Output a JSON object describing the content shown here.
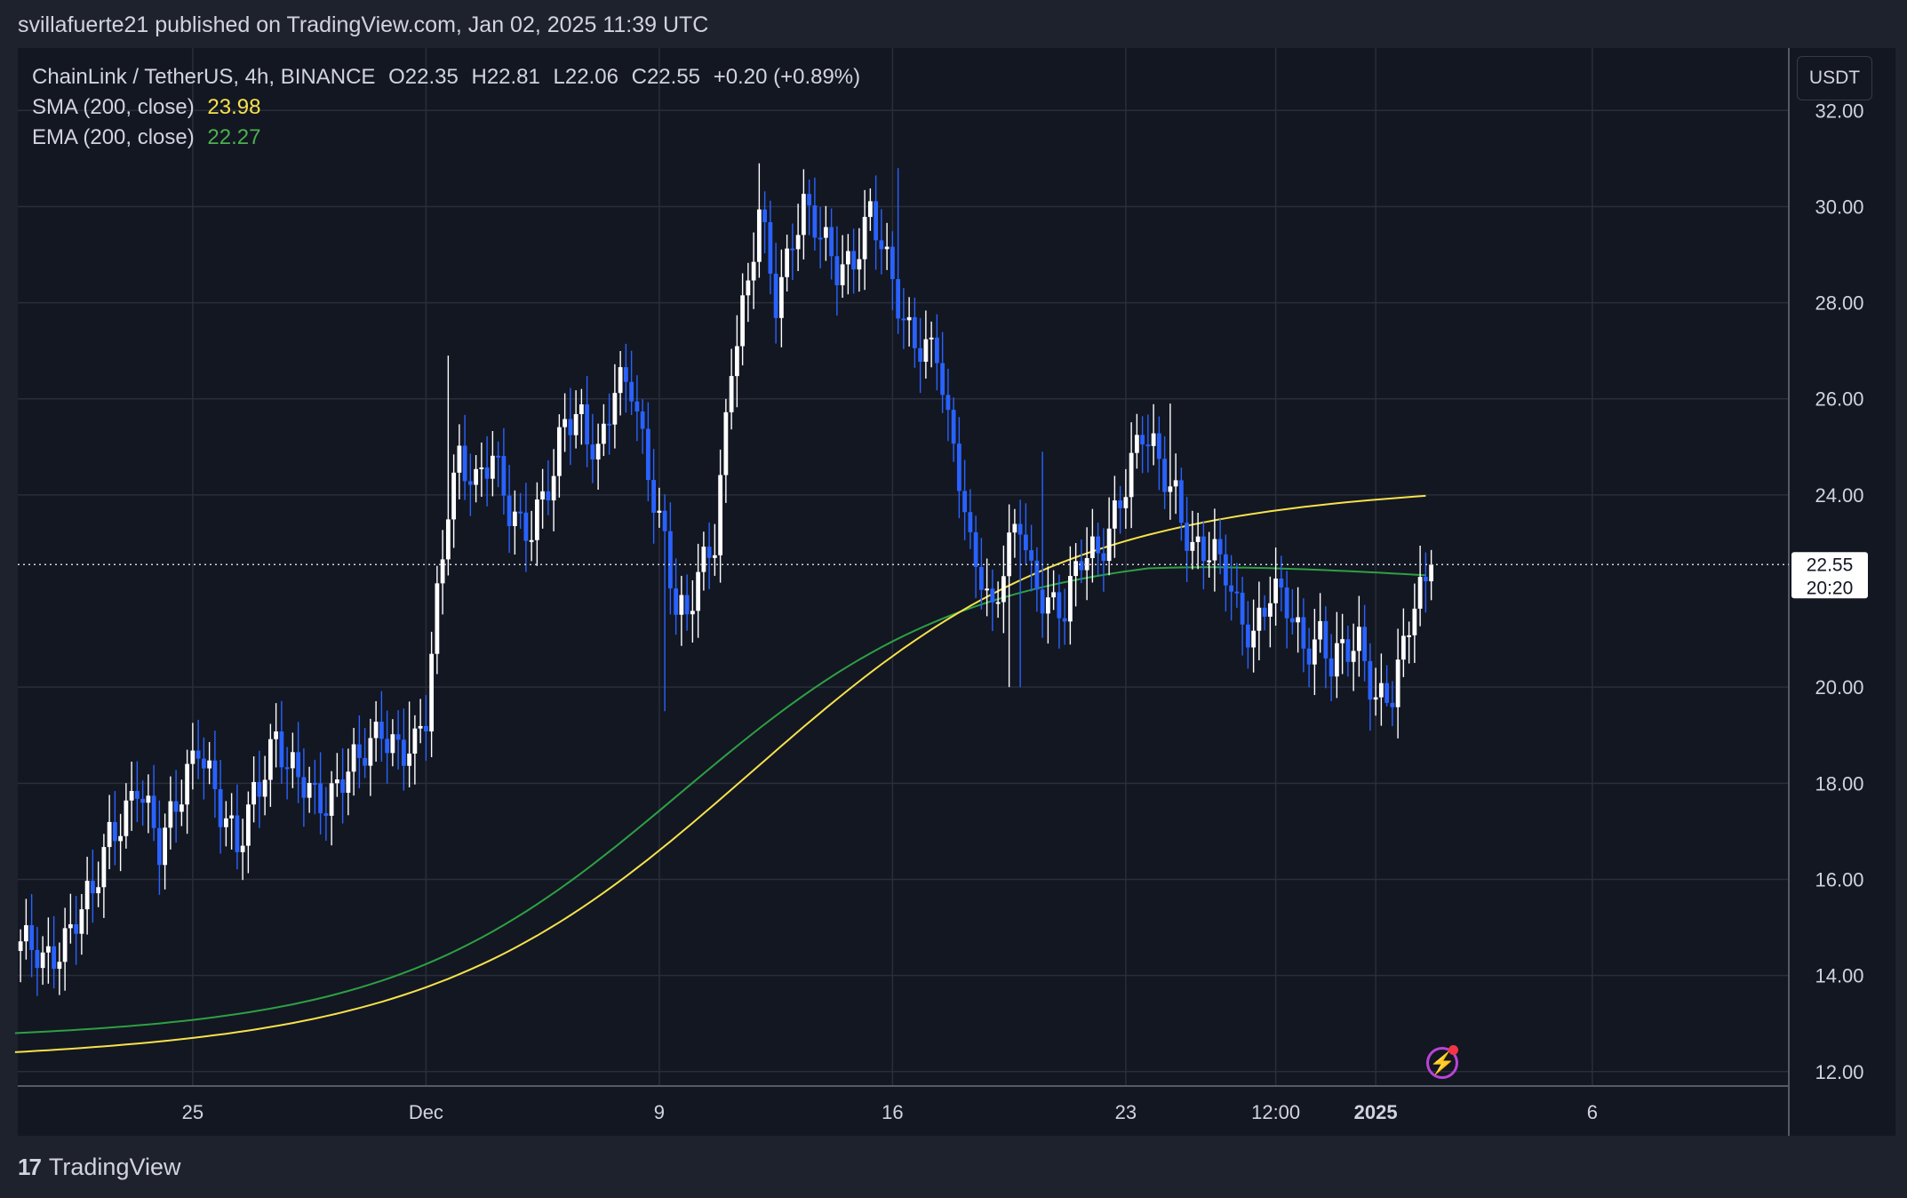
{
  "header": {
    "publisher_line": "svillafuerte21 published on TradingView.com, Jan 02, 2025 11:39 UTC"
  },
  "legend": {
    "symbol": "ChainLink / TetherUS, 4h, BINANCE",
    "open": "O22.35",
    "high": "H22.81",
    "low": "L22.06",
    "close": "C22.55",
    "change": "+0.20 (+0.89%)",
    "sma_label": "SMA (200, close)",
    "sma_value": "23.98",
    "ema_label": "EMA (200, close)",
    "ema_value": "22.27"
  },
  "toolbar": {
    "unit_label": "USDT"
  },
  "price_tag": {
    "price": "22.55",
    "countdown": "20:20"
  },
  "footer": {
    "brand": "TradingView"
  },
  "colors": {
    "background": "#131722",
    "bull": "#ffffff",
    "bear": "#2962ff",
    "sma": "#f7e24b",
    "ema": "#2ea043"
  },
  "icons": {
    "alert": "lightning-icon",
    "logo": "tradingview-logo-icon"
  },
  "chart_data": {
    "type": "candlestick",
    "timeframe": "4h",
    "y_ticks": [
      "32.00",
      "30.00",
      "28.00",
      "26.00",
      "24.00",
      "20.00",
      "18.00",
      "16.00",
      "14.00",
      "12.00"
    ],
    "x_ticks": [
      {
        "label": "25",
        "bar": 31
      },
      {
        "label": "Dec",
        "bar": 73
      },
      {
        "label": "9",
        "bar": 115
      },
      {
        "label": "16",
        "bar": 157
      },
      {
        "label": "23",
        "bar": 199
      },
      {
        "label": "12:00",
        "bar": 226
      },
      {
        "label": "2025",
        "bar": 244
      },
      {
        "label": "6",
        "bar": 283
      }
    ],
    "ylim": [
      11.7,
      33.3
    ],
    "bars_visible_range": [
      -2,
      320
    ],
    "current_price_line": 22.55,
    "anchors": [
      {
        "bar": 0,
        "price": 14.5
      },
      {
        "bar": 4,
        "price": 14.3
      },
      {
        "bar": 10,
        "price": 15.2
      },
      {
        "bar": 13,
        "price": 15.5
      },
      {
        "bar": 16,
        "price": 16.9
      },
      {
        "bar": 21,
        "price": 18.1
      },
      {
        "bar": 25,
        "price": 16.4
      },
      {
        "bar": 30,
        "price": 18.4
      },
      {
        "bar": 32,
        "price": 19.0
      },
      {
        "bar": 36,
        "price": 17.2
      },
      {
        "bar": 39,
        "price": 16.6
      },
      {
        "bar": 42,
        "price": 18.0
      },
      {
        "bar": 46,
        "price": 18.9
      },
      {
        "bar": 48,
        "price": 18.1
      },
      {
        "bar": 55,
        "price": 17.8
      },
      {
        "bar": 61,
        "price": 18.3
      },
      {
        "bar": 65,
        "price": 19.3
      },
      {
        "bar": 69,
        "price": 18.7
      },
      {
        "bar": 71,
        "price": 18.6
      },
      {
        "bar": 73,
        "price": 19.2
      },
      {
        "bar": 75,
        "price": 21.8
      },
      {
        "bar": 77,
        "price": 24.0
      },
      {
        "bar": 79,
        "price": 25.0
      },
      {
        "bar": 82,
        "price": 24.1
      },
      {
        "bar": 85,
        "price": 24.6
      },
      {
        "bar": 88,
        "price": 23.8
      },
      {
        "bar": 92,
        "price": 23.4
      },
      {
        "bar": 96,
        "price": 24.2
      },
      {
        "bar": 98,
        "price": 25.5
      },
      {
        "bar": 101,
        "price": 25.8
      },
      {
        "bar": 104,
        "price": 24.9
      },
      {
        "bar": 107,
        "price": 26.0
      },
      {
        "bar": 110,
        "price": 26.2
      },
      {
        "bar": 113,
        "price": 24.7
      },
      {
        "bar": 116,
        "price": 23.1
      },
      {
        "bar": 118,
        "price": 21.5
      },
      {
        "bar": 120,
        "price": 21.2
      },
      {
        "bar": 122,
        "price": 22.3
      },
      {
        "bar": 125,
        "price": 23.3
      },
      {
        "bar": 128,
        "price": 26.8
      },
      {
        "bar": 131,
        "price": 28.1
      },
      {
        "bar": 133,
        "price": 29.8
      },
      {
        "bar": 136,
        "price": 28.2
      },
      {
        "bar": 139,
        "price": 29.5
      },
      {
        "bar": 141,
        "price": 29.9
      },
      {
        "bar": 144,
        "price": 29.2
      },
      {
        "bar": 147,
        "price": 28.8
      },
      {
        "bar": 150,
        "price": 29.1
      },
      {
        "bar": 153,
        "price": 29.8
      },
      {
        "bar": 156,
        "price": 28.6
      },
      {
        "bar": 159,
        "price": 27.7
      },
      {
        "bar": 162,
        "price": 27.3
      },
      {
        "bar": 165,
        "price": 26.9
      },
      {
        "bar": 167,
        "price": 25.2
      },
      {
        "bar": 169,
        "price": 24.3
      },
      {
        "bar": 171,
        "price": 23.0
      },
      {
        "bar": 173,
        "price": 22.6
      },
      {
        "bar": 175,
        "price": 21.6
      },
      {
        "bar": 177,
        "price": 22.4
      },
      {
        "bar": 180,
        "price": 23.3
      },
      {
        "bar": 182,
        "price": 22.3
      },
      {
        "bar": 185,
        "price": 22.0
      },
      {
        "bar": 188,
        "price": 21.6
      },
      {
        "bar": 191,
        "price": 22.5
      },
      {
        "bar": 194,
        "price": 22.8
      },
      {
        "bar": 197,
        "price": 23.8
      },
      {
        "bar": 200,
        "price": 24.6
      },
      {
        "bar": 202,
        "price": 25.1
      },
      {
        "bar": 205,
        "price": 24.6
      },
      {
        "bar": 208,
        "price": 24.2
      },
      {
        "bar": 211,
        "price": 22.9
      },
      {
        "bar": 214,
        "price": 22.6
      },
      {
        "bar": 217,
        "price": 22.4
      },
      {
        "bar": 219,
        "price": 21.8
      },
      {
        "bar": 222,
        "price": 21.2
      },
      {
        "bar": 225,
        "price": 21.8
      },
      {
        "bar": 228,
        "price": 21.6
      },
      {
        "bar": 231,
        "price": 21.0
      },
      {
        "bar": 234,
        "price": 21.2
      },
      {
        "bar": 236,
        "price": 20.4
      },
      {
        "bar": 239,
        "price": 20.6
      },
      {
        "bar": 241,
        "price": 20.9
      },
      {
        "bar": 244,
        "price": 20.0
      },
      {
        "bar": 247,
        "price": 19.9
      },
      {
        "bar": 249,
        "price": 20.6
      },
      {
        "bar": 251,
        "price": 21.6
      },
      {
        "bar": 253,
        "price": 22.1
      },
      {
        "bar": 254,
        "price": 22.55
      }
    ],
    "spikes": [
      {
        "bar": 70,
        "high": 19.7
      },
      {
        "bar": 77,
        "high": 26.9
      },
      {
        "bar": 116,
        "low": 19.5
      },
      {
        "bar": 133,
        "high": 30.9
      },
      {
        "bar": 158,
        "high": 30.8
      },
      {
        "bar": 178,
        "low": 20.0
      },
      {
        "bar": 180,
        "low": 20.0
      },
      {
        "bar": 184,
        "high": 24.9
      },
      {
        "bar": 207,
        "high": 25.9
      },
      {
        "bar": 246,
        "low": 19.6
      }
    ],
    "sma": {
      "name": "SMA (200, close)",
      "start": 12.4,
      "end_bar": 254,
      "end": 23.98
    },
    "ema": {
      "name": "EMA (200, close)",
      "start": 12.8,
      "end_bar": 254,
      "end": 22.27
    }
  }
}
